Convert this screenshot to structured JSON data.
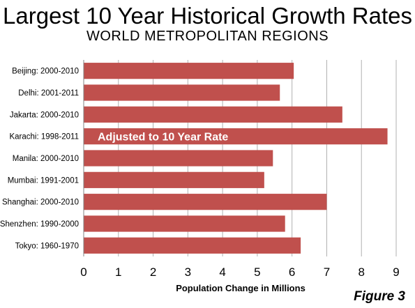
{
  "title": "Largest 10 Year Historical Growth Rates",
  "subtitle": "WORLD METROPOLITAN REGIONS",
  "figure_label": "Figure 3",
  "chart_data": {
    "type": "bar",
    "orientation": "horizontal",
    "categories": [
      "Beijing: 2000-2010",
      "Delhi: 2001-2011",
      "Jakarta: 2000-2010",
      "Karachi: 1998-2011",
      "Manila: 2000-2010",
      "Mumbai: 1991-2001",
      "Shanghai: 2000-2010",
      "Shenzhen: 1990-2000",
      "Tokyo: 1960-1970"
    ],
    "values": [
      6.05,
      5.65,
      7.45,
      8.75,
      5.45,
      5.2,
      7.0,
      5.8,
      6.25
    ],
    "xlabel": "Population Change in Millions",
    "xlim": [
      0,
      9
    ],
    "xticks": [
      0,
      1,
      2,
      3,
      4,
      5,
      6,
      7,
      8,
      9
    ],
    "grid": true,
    "bar_color": "#c0504d",
    "annotation": {
      "text": "Adjusted to 10 Year Rate",
      "category": "Karachi: 1998-2011"
    }
  }
}
